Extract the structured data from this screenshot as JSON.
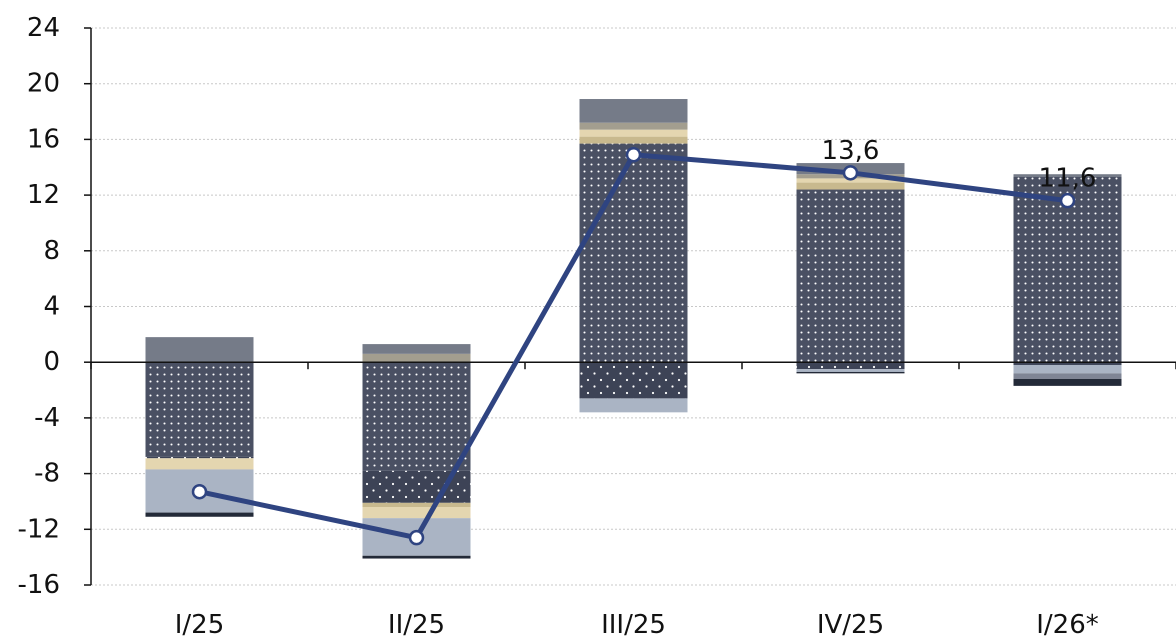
{
  "chart_data": {
    "type": "bar",
    "title": "",
    "xlabel": "",
    "ylabel": "",
    "categories": [
      "I/25",
      "II/25",
      "III/25",
      "IV/25",
      "I/26*"
    ],
    "ylim": [
      -16,
      24
    ],
    "yticks": [
      "24",
      "20",
      "16",
      "12",
      "8",
      "4",
      "0",
      "-4",
      "-8",
      "-12",
      "-16"
    ],
    "grid": true,
    "stacked": true,
    "series": [
      {
        "kind": "dotted-dark",
        "color": "#4a5063",
        "values": [
          -6.8,
          -7.8,
          15.7,
          12.4,
          13.3
        ]
      },
      {
        "kind": "dotted-darker",
        "color": "#3d4356",
        "values": [
          -0.1,
          -2.3,
          -2.6,
          -0.5,
          -0.2
        ]
      },
      {
        "kind": "solid",
        "color": "#c8b98e",
        "values": [
          0.0,
          -0.3,
          0.5,
          0.5,
          0.0
        ]
      },
      {
        "kind": "solid",
        "color": "#e4d6b0",
        "values": [
          -0.8,
          -0.8,
          0.5,
          0.3,
          0.0
        ]
      },
      {
        "kind": "solid",
        "color": "#aab4c4",
        "values": [
          -3.1,
          -2.7,
          -1.0,
          -0.2,
          -0.6
        ]
      },
      {
        "kind": "solid",
        "color": "#a39e8f",
        "values": [
          0.0,
          0.6,
          0.5,
          0.3,
          0.0
        ]
      },
      {
        "kind": "solid",
        "color": "#757b88",
        "values": [
          1.8,
          0.7,
          1.7,
          0.8,
          0.2
        ]
      },
      {
        "kind": "solid",
        "color": "#7f8595",
        "values": [
          0.0,
          0.0,
          0.0,
          0.0,
          -0.4
        ]
      },
      {
        "kind": "solid",
        "color": "#232a38",
        "values": [
          -0.3,
          -0.2,
          0.0,
          -0.1,
          -0.5
        ]
      }
    ],
    "line": {
      "color": "#2f4481",
      "values": [
        -9.3,
        -12.6,
        14.9,
        13.6,
        11.6
      ],
      "labels": [
        "",
        "",
        "",
        "13,6",
        "11,6"
      ]
    }
  }
}
